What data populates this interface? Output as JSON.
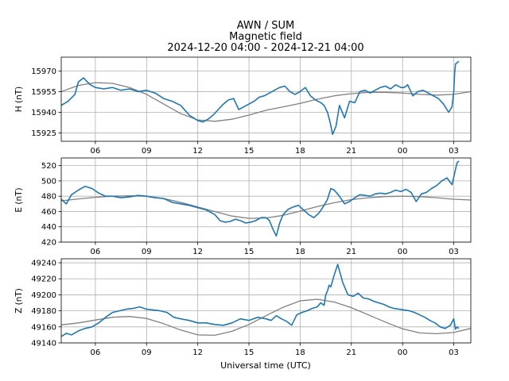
{
  "header": {
    "station": "AWN / SUM",
    "subtitle": "Magnetic field",
    "date_range": "2024-12-20 04:00 - 2024-12-21 04:00"
  },
  "colors": {
    "measured": "#1f77b4",
    "baseline": "#808080",
    "grid": "#b0b0b0"
  },
  "chart_data": [
    {
      "type": "line",
      "panel": "H",
      "ylabel": "H (nT)",
      "xlabel": "",
      "xticks": [
        "06",
        "09",
        "12",
        "15",
        "18",
        "21",
        "00",
        "03"
      ],
      "xtick_hours": [
        6,
        9,
        12,
        15,
        18,
        21,
        24,
        27
      ],
      "xlim_hours": [
        4.0,
        28.0
      ],
      "yticks": [
        15925,
        15940,
        15955,
        15970
      ],
      "ylim": [
        15919,
        15980
      ],
      "grid": true,
      "series": [
        {
          "role": "measured",
          "x_hours": [
            4.0,
            4.4,
            4.8,
            5.0,
            5.3,
            5.7,
            6.0,
            6.5,
            7.0,
            7.5,
            8.0,
            8.5,
            9.0,
            9.5,
            10.0,
            10.5,
            11.0,
            11.5,
            12.0,
            12.3,
            12.6,
            12.9,
            13.2,
            13.5,
            13.8,
            14.1,
            14.4,
            14.7,
            15.0,
            15.3,
            15.6,
            15.9,
            16.2,
            16.5,
            16.8,
            17.1,
            17.4,
            17.7,
            18.0,
            18.3,
            18.6,
            18.9,
            19.2,
            19.4,
            19.6,
            19.75,
            19.9,
            20.1,
            20.3,
            20.6,
            20.9,
            21.2,
            21.5,
            21.8,
            22.1,
            22.4,
            22.7,
            23.0,
            23.3,
            23.6,
            23.9,
            24.1,
            24.3,
            24.6,
            24.9,
            25.2,
            25.5,
            25.8,
            26.1,
            26.4,
            26.7,
            26.9,
            27.0,
            27.05,
            27.1,
            27.2,
            27.3
          ],
          "y": [
            15945,
            15948,
            15953,
            15962,
            15965,
            15960,
            15958,
            15957,
            15958,
            15956,
            15957,
            15955,
            15956,
            15954,
            15950,
            15948,
            15945,
            15938,
            15934,
            15933,
            15935,
            15938,
            15942,
            15946,
            15949,
            15950,
            15942,
            15944,
            15946,
            15948,
            15951,
            15952,
            15954,
            15956,
            15958,
            15959,
            15955,
            15953,
            15955,
            15958,
            15952,
            15949,
            15947,
            15945,
            15940,
            15933,
            15924,
            15930,
            15945,
            15936,
            15948,
            15947,
            15955,
            15956,
            15954,
            15956,
            15958,
            15959,
            15957,
            15960,
            15958,
            15958,
            15960,
            15952,
            15955,
            15956,
            15954,
            15952,
            15950,
            15946,
            15940,
            15944,
            15955,
            15968,
            15975,
            15976,
            15977
          ]
        },
        {
          "role": "baseline",
          "x_hours": [
            4,
            5,
            6,
            7,
            8,
            9,
            10,
            11,
            12,
            13,
            14,
            15,
            16,
            17,
            18,
            19,
            20,
            21,
            22,
            23,
            24,
            25,
            26,
            27,
            28
          ],
          "y": [
            15955,
            15959.5,
            15961.5,
            15961,
            15958,
            15953,
            15946,
            15939,
            15934.5,
            15933.5,
            15935,
            15938,
            15941.5,
            15944,
            15946.5,
            15949.5,
            15952,
            15953.5,
            15954.5,
            15954.5,
            15954,
            15953,
            15952.5,
            15953,
            15955
          ]
        }
      ]
    },
    {
      "type": "line",
      "panel": "E",
      "ylabel": "E (nT)",
      "xlabel": "",
      "xticks": [
        "06",
        "09",
        "12",
        "15",
        "18",
        "21",
        "00",
        "03"
      ],
      "xtick_hours": [
        6,
        9,
        12,
        15,
        18,
        21,
        24,
        27
      ],
      "xlim_hours": [
        4.0,
        28.0
      ],
      "yticks": [
        420,
        440,
        460,
        480,
        500,
        520
      ],
      "ylim": [
        420,
        530
      ],
      "grid": true,
      "series": [
        {
          "role": "measured",
          "x_hours": [
            4.0,
            4.3,
            4.6,
            5.0,
            5.4,
            5.8,
            6.2,
            6.6,
            7.0,
            7.5,
            8.0,
            8.5,
            9.0,
            9.5,
            10.0,
            10.5,
            11.0,
            11.5,
            12.0,
            12.5,
            13.0,
            13.3,
            13.6,
            13.9,
            14.2,
            14.5,
            14.8,
            15.1,
            15.4,
            15.7,
            16.0,
            16.2,
            16.4,
            16.6,
            16.8,
            17.0,
            17.3,
            17.6,
            17.9,
            18.2,
            18.5,
            18.8,
            19.1,
            19.4,
            19.6,
            19.8,
            20.0,
            20.3,
            20.6,
            20.9,
            21.2,
            21.5,
            21.8,
            22.1,
            22.4,
            22.7,
            23.0,
            23.3,
            23.6,
            23.9,
            24.2,
            24.5,
            24.8,
            25.1,
            25.4,
            25.7,
            26.0,
            26.3,
            26.6,
            26.9,
            27.1,
            27.2,
            27.3
          ],
          "y": [
            476,
            470,
            482,
            488,
            493,
            490,
            484,
            480,
            480,
            478,
            479,
            481,
            480,
            478,
            477,
            472,
            470,
            468,
            465,
            462,
            456,
            448,
            446,
            447,
            450,
            448,
            445,
            446,
            448,
            452,
            452,
            448,
            437,
            428,
            445,
            456,
            463,
            466,
            468,
            462,
            456,
            452,
            458,
            468,
            476,
            490,
            488,
            480,
            470,
            473,
            478,
            482,
            481,
            480,
            483,
            484,
            483,
            485,
            488,
            486,
            489,
            485,
            473,
            483,
            485,
            490,
            494,
            500,
            504,
            495,
            515,
            524,
            526
          ]
        },
        {
          "role": "baseline",
          "x_hours": [
            4,
            5,
            6,
            7,
            8,
            9,
            10,
            11,
            12,
            13,
            14,
            15,
            16,
            17,
            18,
            19,
            20,
            21,
            22,
            23,
            24,
            25,
            26,
            27,
            28
          ],
          "y": [
            474,
            476.5,
            478.5,
            480,
            480.5,
            480,
            477,
            472,
            466,
            460,
            454,
            451,
            451.5,
            455,
            460.5,
            466.5,
            471.5,
            475.5,
            478,
            479.5,
            480,
            479.5,
            478,
            476,
            475
          ]
        }
      ]
    },
    {
      "type": "line",
      "panel": "Z",
      "ylabel": "Z (nT)",
      "xlabel": "Universal time (UTC)",
      "xticks": [
        "06",
        "09",
        "12",
        "15",
        "18",
        "21",
        "00",
        "03"
      ],
      "xtick_hours": [
        6,
        9,
        12,
        15,
        18,
        21,
        24,
        27
      ],
      "xlim_hours": [
        4.0,
        28.0
      ],
      "yticks": [
        49140,
        49160,
        49180,
        49200,
        49220,
        49240
      ],
      "ylim": [
        49140,
        49245
      ],
      "grid": true,
      "series": [
        {
          "role": "measured",
          "x_hours": [
            4.0,
            4.3,
            4.6,
            5.0,
            5.4,
            5.8,
            6.2,
            6.6,
            7.0,
            7.4,
            7.8,
            8.2,
            8.6,
            9.0,
            9.4,
            9.8,
            10.2,
            10.6,
            11.0,
            11.5,
            12.0,
            12.5,
            13.0,
            13.5,
            14.0,
            14.5,
            15.0,
            15.5,
            16.0,
            16.3,
            16.6,
            16.9,
            17.2,
            17.5,
            17.8,
            18.1,
            18.4,
            18.7,
            19.0,
            19.2,
            19.4,
            19.5,
            19.6,
            19.7,
            19.8,
            20.0,
            20.2,
            20.5,
            20.8,
            21.1,
            21.4,
            21.7,
            22.0,
            22.3,
            22.6,
            22.9,
            23.2,
            23.5,
            23.8,
            24.1,
            24.4,
            24.7,
            25.0,
            25.3,
            25.6,
            25.9,
            26.2,
            26.5,
            26.8,
            27.0,
            27.1,
            27.2,
            27.3
          ],
          "y": [
            49148,
            49152,
            49150,
            49155,
            49158,
            49160,
            49165,
            49172,
            49178,
            49180,
            49182,
            49183,
            49185,
            49182,
            49181,
            49180,
            49178,
            49172,
            49170,
            49168,
            49165,
            49165,
            49163,
            49162,
            49165,
            49170,
            49168,
            49172,
            49170,
            49168,
            49174,
            49170,
            49167,
            49162,
            49175,
            49178,
            49180,
            49183,
            49185,
            49190,
            49187,
            49200,
            49205,
            49212,
            49210,
            49225,
            49238,
            49215,
            49200,
            49198,
            49202,
            49196,
            49195,
            49192,
            49190,
            49188,
            49185,
            49183,
            49182,
            49181,
            49180,
            49178,
            49175,
            49172,
            49168,
            49165,
            49160,
            49158,
            49162,
            49170,
            49157,
            49160,
            49158
          ]
        },
        {
          "role": "baseline",
          "x_hours": [
            4,
            5,
            6,
            7,
            8,
            9,
            10,
            11,
            12,
            13,
            14,
            15,
            16,
            17,
            18,
            19,
            20,
            21,
            22,
            23,
            24,
            25,
            26,
            27,
            28
          ],
          "y": [
            49162.5,
            49165,
            49168.5,
            49172,
            49173,
            49170.5,
            49164,
            49156,
            49150,
            49149.5,
            49154.5,
            49163,
            49174,
            49184.5,
            49192.5,
            49194.5,
            49191,
            49184,
            49175,
            49166,
            49157.5,
            49152.5,
            49151.5,
            49153,
            49158
          ]
        }
      ]
    }
  ]
}
